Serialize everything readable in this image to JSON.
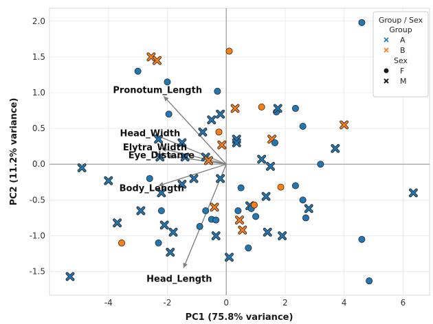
{
  "chart_data": {
    "type": "scatter",
    "xlabel": "PC1 (75.8% variance)",
    "ylabel": "PC2 (11.2% variance)",
    "xlim": [
      -6.0,
      6.9
    ],
    "ylim": [
      -1.83,
      2.18
    ],
    "xticks": [
      -4,
      -2,
      0,
      2,
      4,
      6
    ],
    "yticks": [
      -1.5,
      -1.0,
      -0.5,
      0.0,
      0.5,
      1.0,
      1.5,
      2.0
    ],
    "grid": true,
    "colors": {
      "A": "#1f77b4",
      "B": "#ff7f0e",
      "marker_edge": "#2a2a2a",
      "arrow": "#808080",
      "axis_zero": "#a0a0a0"
    },
    "legend": {
      "placement": "top-right",
      "title": "Group / Sex",
      "entries": [
        {
          "kind": "header",
          "label": "Group"
        },
        {
          "kind": "group",
          "label": "A",
          "key": "A"
        },
        {
          "kind": "group",
          "label": "B",
          "key": "B"
        },
        {
          "kind": "header",
          "label": "Sex"
        },
        {
          "kind": "sex",
          "label": "F",
          "marker": "circle"
        },
        {
          "kind": "sex",
          "label": "M",
          "marker": "x"
        }
      ]
    },
    "loadings": [
      {
        "label": "Pronotum_Length",
        "x": -2.12,
        "y": 0.95
      },
      {
        "label": "Head_Width",
        "x": -2.35,
        "y": 0.4
      },
      {
        "label": "Elytra_Width",
        "x": -2.2,
        "y": 0.22
      },
      {
        "label": "Eye_Distance",
        "x": -2.0,
        "y": 0.12
      },
      {
        "label": "Body_Length",
        "x": -2.3,
        "y": -0.3
      },
      {
        "label": "Head_Length",
        "x": -1.45,
        "y": -1.45
      }
    ],
    "points": [
      {
        "x": -5.3,
        "y": -1.57,
        "g": "A",
        "s": "M"
      },
      {
        "x": -4.9,
        "y": -0.05,
        "g": "A",
        "s": "M"
      },
      {
        "x": -4.0,
        "y": -0.23,
        "g": "A",
        "s": "M"
      },
      {
        "x": -3.7,
        "y": -0.82,
        "g": "A",
        "s": "M"
      },
      {
        "x": -3.55,
        "y": -1.1,
        "g": "B",
        "s": "F"
      },
      {
        "x": -3.0,
        "y": 1.3,
        "g": "A",
        "s": "F"
      },
      {
        "x": -2.9,
        "y": -0.65,
        "g": "A",
        "s": "M"
      },
      {
        "x": -2.6,
        "y": -0.2,
        "g": "A",
        "s": "F"
      },
      {
        "x": -2.55,
        "y": 1.5,
        "g": "B",
        "s": "M"
      },
      {
        "x": -2.35,
        "y": 1.45,
        "g": "B",
        "s": "M"
      },
      {
        "x": -2.3,
        "y": 0.35,
        "g": "A",
        "s": "M"
      },
      {
        "x": -2.25,
        "y": 0.1,
        "g": "A",
        "s": "M"
      },
      {
        "x": -2.2,
        "y": -0.4,
        "g": "A",
        "s": "M"
      },
      {
        "x": -2.2,
        "y": -0.65,
        "g": "A",
        "s": "F"
      },
      {
        "x": -2.1,
        "y": -0.85,
        "g": "A",
        "s": "M"
      },
      {
        "x": -2.3,
        "y": -1.1,
        "g": "A",
        "s": "F"
      },
      {
        "x": -2.0,
        "y": 1.15,
        "g": "A",
        "s": "F"
      },
      {
        "x": -1.95,
        "y": 0.7,
        "g": "A",
        "s": "F"
      },
      {
        "x": -1.9,
        "y": -1.23,
        "g": "A",
        "s": "M"
      },
      {
        "x": -1.8,
        "y": -0.95,
        "g": "A",
        "s": "M"
      },
      {
        "x": -1.5,
        "y": -0.28,
        "g": "A",
        "s": "M"
      },
      {
        "x": -1.4,
        "y": 0.1,
        "g": "A",
        "s": "M"
      },
      {
        "x": -1.5,
        "y": 0.3,
        "g": "A",
        "s": "M"
      },
      {
        "x": -1.1,
        "y": -0.2,
        "g": "A",
        "s": "M"
      },
      {
        "x": -0.9,
        "y": -0.87,
        "g": "A",
        "s": "F"
      },
      {
        "x": -0.8,
        "y": 0.45,
        "g": "A",
        "s": "M"
      },
      {
        "x": -0.7,
        "y": 0.1,
        "g": "A",
        "s": "M"
      },
      {
        "x": -0.7,
        "y": -0.65,
        "g": "A",
        "s": "F"
      },
      {
        "x": -0.6,
        "y": 0.05,
        "g": "B",
        "s": "M"
      },
      {
        "x": -0.5,
        "y": 0.62,
        "g": "A",
        "s": "M"
      },
      {
        "x": -0.5,
        "y": -0.77,
        "g": "A",
        "s": "F"
      },
      {
        "x": -0.4,
        "y": -0.6,
        "g": "B",
        "s": "M"
      },
      {
        "x": -0.35,
        "y": -0.78,
        "g": "A",
        "s": "F"
      },
      {
        "x": -0.3,
        "y": 1.02,
        "g": "A",
        "s": "F"
      },
      {
        "x": -0.25,
        "y": 0.45,
        "g": "B",
        "s": "F"
      },
      {
        "x": -0.15,
        "y": 0.27,
        "g": "B",
        "s": "M"
      },
      {
        "x": -0.2,
        "y": -0.2,
        "g": "A",
        "s": "M"
      },
      {
        "x": -0.35,
        "y": -1.0,
        "g": "A",
        "s": "M"
      },
      {
        "x": -0.2,
        "y": 0.7,
        "g": "A",
        "s": "M"
      },
      {
        "x": 0.1,
        "y": 1.58,
        "g": "B",
        "s": "F"
      },
      {
        "x": 0.3,
        "y": 0.78,
        "g": "B",
        "s": "M"
      },
      {
        "x": 0.35,
        "y": 0.35,
        "g": "A",
        "s": "M"
      },
      {
        "x": 0.35,
        "y": 0.3,
        "g": "A",
        "s": "M"
      },
      {
        "x": 0.4,
        "y": -0.65,
        "g": "A",
        "s": "F"
      },
      {
        "x": 0.5,
        "y": -0.33,
        "g": "A",
        "s": "F"
      },
      {
        "x": 0.45,
        "y": -0.78,
        "g": "B",
        "s": "M"
      },
      {
        "x": 0.55,
        "y": -0.92,
        "g": "B",
        "s": "M"
      },
      {
        "x": 0.1,
        "y": -1.3,
        "g": "A",
        "s": "M"
      },
      {
        "x": 0.75,
        "y": -1.17,
        "g": "A",
        "s": "F"
      },
      {
        "x": 0.8,
        "y": -0.58,
        "g": "A",
        "s": "M"
      },
      {
        "x": 0.85,
        "y": -0.62,
        "g": "A",
        "s": "F"
      },
      {
        "x": 0.95,
        "y": -0.57,
        "g": "B",
        "s": "F"
      },
      {
        "x": 1.0,
        "y": -0.73,
        "g": "A",
        "s": "F"
      },
      {
        "x": 1.2,
        "y": 0.8,
        "g": "B",
        "s": "F"
      },
      {
        "x": 1.2,
        "y": 0.07,
        "g": "A",
        "s": "M"
      },
      {
        "x": 1.35,
        "y": -0.45,
        "g": "A",
        "s": "M"
      },
      {
        "x": 1.4,
        "y": -0.95,
        "g": "A",
        "s": "M"
      },
      {
        "x": 1.5,
        "y": -0.03,
        "g": "A",
        "s": "M"
      },
      {
        "x": 1.55,
        "y": 0.35,
        "g": "B",
        "s": "M"
      },
      {
        "x": 1.65,
        "y": 0.3,
        "g": "A",
        "s": "F"
      },
      {
        "x": 1.7,
        "y": 0.73,
        "g": "A",
        "s": "F"
      },
      {
        "x": 1.75,
        "y": 0.78,
        "g": "A",
        "s": "M"
      },
      {
        "x": 1.85,
        "y": -0.32,
        "g": "B",
        "s": "F"
      },
      {
        "x": 1.9,
        "y": -1.0,
        "g": "A",
        "s": "M"
      },
      {
        "x": 2.35,
        "y": 0.78,
        "g": "A",
        "s": "F"
      },
      {
        "x": 2.35,
        "y": -0.3,
        "g": "A",
        "s": "F"
      },
      {
        "x": 2.6,
        "y": 0.53,
        "g": "A",
        "s": "F"
      },
      {
        "x": 2.6,
        "y": -0.5,
        "g": "A",
        "s": "F"
      },
      {
        "x": 2.7,
        "y": -0.75,
        "g": "A",
        "s": "F"
      },
      {
        "x": 2.8,
        "y": -0.62,
        "g": "A",
        "s": "M"
      },
      {
        "x": 3.2,
        "y": 0.0,
        "g": "A",
        "s": "F"
      },
      {
        "x": 3.7,
        "y": 0.22,
        "g": "A",
        "s": "M"
      },
      {
        "x": 4.0,
        "y": 0.55,
        "g": "B",
        "s": "M"
      },
      {
        "x": 4.6,
        "y": 1.98,
        "g": "A",
        "s": "F"
      },
      {
        "x": 4.6,
        "y": -1.05,
        "g": "A",
        "s": "F"
      },
      {
        "x": 4.85,
        "y": -1.63,
        "g": "A",
        "s": "F"
      },
      {
        "x": 6.35,
        "y": -0.4,
        "g": "A",
        "s": "M"
      }
    ]
  }
}
